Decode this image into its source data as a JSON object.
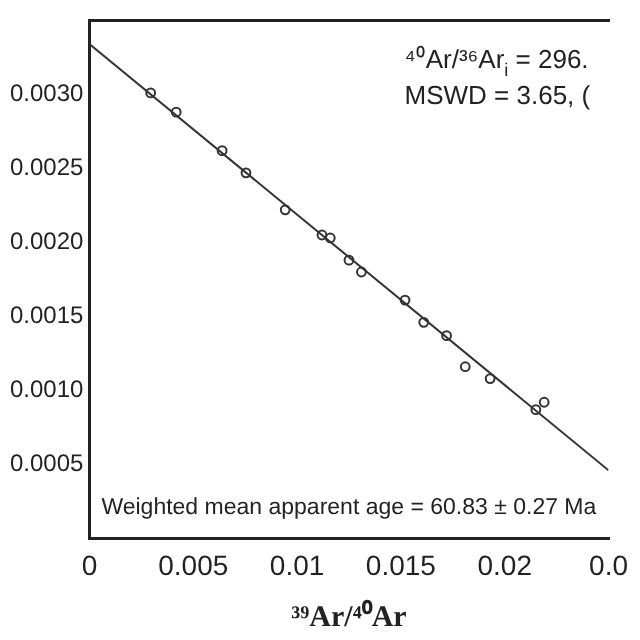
{
  "chart_data": {
    "type": "scatter",
    "xlabel": "³⁹Ar/⁴⁰Ar",
    "x": [
      0.00295,
      0.00418,
      0.00639,
      0.00754,
      0.00943,
      0.0112,
      0.0116,
      0.0125,
      0.0131,
      0.0152,
      0.0161,
      0.0172,
      0.0181,
      0.0193,
      0.0215,
      0.0219
    ],
    "series": [
      {
        "marker": "circle",
        "color": "#333333",
        "values": [
          0.00301,
          0.00288,
          0.00262,
          0.00247,
          0.00222,
          0.00205,
          0.00203,
          0.00188,
          0.0018,
          0.00161,
          0.00146,
          0.00137,
          0.00116,
          0.00108,
          0.00087,
          0.00092
        ]
      },
      {
        "type": "line",
        "color": "#333333",
        "x": [
          0,
          0.025
        ],
        "values": [
          0.00334,
          0.00046
        ]
      }
    ],
    "xlim": [
      0,
      0.025
    ],
    "xticks": [
      0,
      0.005,
      0.01,
      0.015,
      0.02,
      {
        "value": 0.025,
        "label": "0.0"
      }
    ],
    "ylim": [
      0,
      0.0035
    ],
    "yticks": [
      {
        "value": 0.003,
        "label": "0.0030"
      },
      {
        "value": 0.0025,
        "label": "0.0025"
      },
      {
        "value": 0.002,
        "label": "0.0020"
      },
      {
        "value": 0.0015,
        "label": "0.0015"
      },
      {
        "value": 0.001,
        "label": "0.0010"
      },
      {
        "value": 0.0005,
        "label": "0.0005"
      }
    ],
    "annotations": [
      "⁴⁰Ar/³⁶Ar$_{i}$ = 296.",
      "MSWD = 3.65, (",
      "Weighted mean apparent age = 60.83 ± 0.27 Ma"
    ],
    "grid": false,
    "legend": false
  }
}
